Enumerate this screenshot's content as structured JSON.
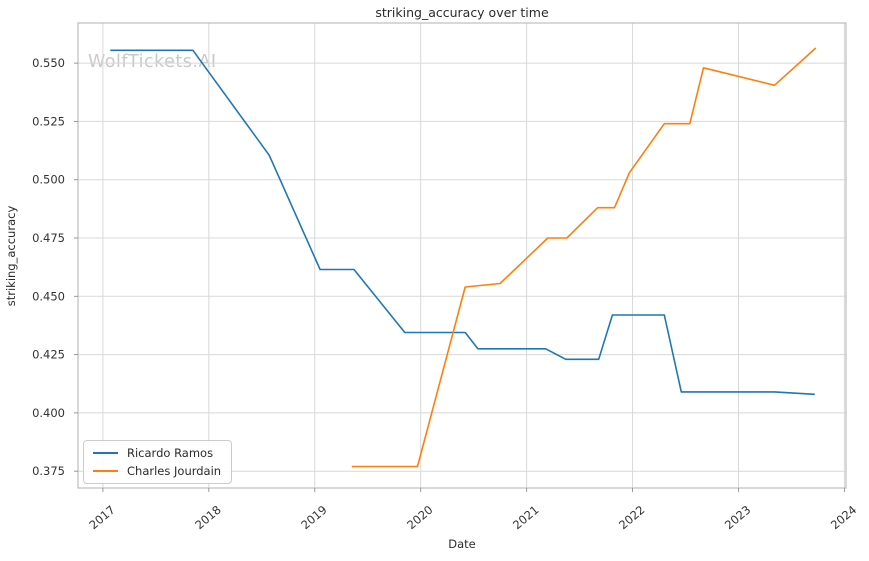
{
  "watermark": "WolfTickets.AI",
  "colors": {
    "series_blue": "#1f77b4",
    "series_orange": "#ff7f0e",
    "grid": "#d8d8d8",
    "frame": "#bdbdbd",
    "tick_mark": "#8f8f8f",
    "tick_text": "#333333",
    "title_text": "#2b2b2b",
    "watermark_text": "#c9c9c9"
  },
  "chart_data": {
    "type": "line",
    "title": "striking_accuracy over time",
    "xlabel": "Date",
    "ylabel": "striking_accuracy",
    "xlim": [
      2016.765,
      2024.015
    ],
    "ylim": [
      0.3678,
      0.5672
    ],
    "x_ticks": [
      2017,
      2018,
      2019,
      2020,
      2021,
      2022,
      2023,
      2024
    ],
    "y_ticks": [
      0.375,
      0.4,
      0.425,
      0.45,
      0.475,
      0.5,
      0.525,
      0.55
    ],
    "grid": true,
    "x_tick_rotation_deg": 40,
    "legend_position": "lower-left",
    "series": [
      {
        "name": "Ricardo Ramos",
        "color": "#1f77b4",
        "points": [
          [
            2017.07,
            0.5555
          ],
          [
            2017.85,
            0.5555
          ],
          [
            2018.57,
            0.5105
          ],
          [
            2019.05,
            0.4615
          ],
          [
            2019.37,
            0.4615
          ],
          [
            2019.85,
            0.4345
          ],
          [
            2020.42,
            0.4345
          ],
          [
            2020.54,
            0.4275
          ],
          [
            2021.18,
            0.4275
          ],
          [
            2021.37,
            0.423
          ],
          [
            2021.68,
            0.423
          ],
          [
            2021.81,
            0.442
          ],
          [
            2022.3,
            0.442
          ],
          [
            2022.46,
            0.409
          ],
          [
            2023.34,
            0.409
          ],
          [
            2023.72,
            0.408
          ]
        ]
      },
      {
        "name": "Charles Jourdain",
        "color": "#ff7f0e",
        "points": [
          [
            2019.35,
            0.377
          ],
          [
            2019.97,
            0.377
          ],
          [
            2020.42,
            0.454
          ],
          [
            2020.75,
            0.4555
          ],
          [
            2021.2,
            0.475
          ],
          [
            2021.38,
            0.475
          ],
          [
            2021.67,
            0.488
          ],
          [
            2021.83,
            0.488
          ],
          [
            2021.97,
            0.503
          ],
          [
            2022.3,
            0.524
          ],
          [
            2022.54,
            0.524
          ],
          [
            2022.67,
            0.548
          ],
          [
            2023.34,
            0.5405
          ],
          [
            2023.73,
            0.5565
          ]
        ]
      }
    ]
  }
}
